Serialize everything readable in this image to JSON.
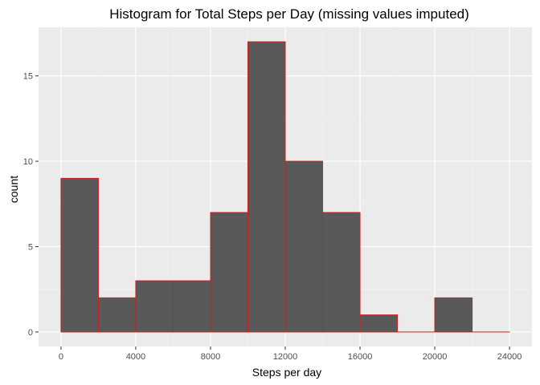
{
  "chart_data": {
    "type": "bar",
    "title": "Histogram for Total Steps per Day (missing values imputed)",
    "xlabel": "Steps per day",
    "ylabel": "count",
    "bins": [
      {
        "start": 0,
        "end": 2000,
        "count": 9
      },
      {
        "start": 2000,
        "end": 4000,
        "count": 2
      },
      {
        "start": 4000,
        "end": 6000,
        "count": 3
      },
      {
        "start": 6000,
        "end": 8000,
        "count": 3
      },
      {
        "start": 8000,
        "end": 10000,
        "count": 7
      },
      {
        "start": 10000,
        "end": 12000,
        "count": 17
      },
      {
        "start": 12000,
        "end": 14000,
        "count": 10
      },
      {
        "start": 14000,
        "end": 16000,
        "count": 7
      },
      {
        "start": 16000,
        "end": 18000,
        "count": 1
      },
      {
        "start": 18000,
        "end": 20000,
        "count": 0
      },
      {
        "start": 20000,
        "end": 22000,
        "count": 2
      },
      {
        "start": 22000,
        "end": 24000,
        "count": 0
      }
    ],
    "xlim": [
      -1200,
      25200
    ],
    "ylim": [
      -0.85,
      17.85
    ],
    "x_ticks": [
      0,
      4000,
      8000,
      12000,
      16000,
      20000,
      24000
    ],
    "x_tick_labels": [
      "0",
      "4000",
      "8000",
      "12000",
      "16000",
      "20000",
      "24000"
    ],
    "y_ticks": [
      0,
      5,
      10,
      15
    ],
    "y_tick_labels": [
      "0",
      "5",
      "10",
      "15"
    ],
    "grid": true,
    "colors": {
      "bar_fill": "#595959",
      "bar_outline": "#cc1f1f",
      "panel_background": "#ebebeb",
      "grid_major": "#ffffff",
      "grid_minor": "#f2f2f2"
    }
  }
}
